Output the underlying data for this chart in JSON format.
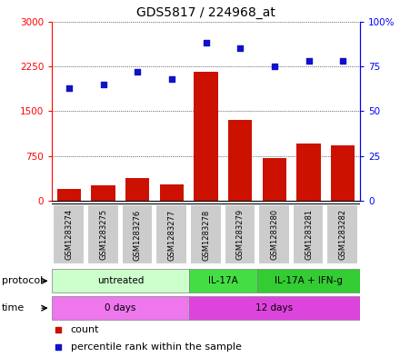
{
  "title": "GDS5817 / 224968_at",
  "samples": [
    "GSM1283274",
    "GSM1283275",
    "GSM1283276",
    "GSM1283277",
    "GSM1283278",
    "GSM1283279",
    "GSM1283280",
    "GSM1283281",
    "GSM1283282"
  ],
  "counts": [
    200,
    250,
    380,
    270,
    2150,
    1350,
    720,
    950,
    920
  ],
  "percentiles": [
    63,
    65,
    72,
    68,
    88,
    85,
    75,
    78,
    78
  ],
  "ylim_left": [
    0,
    3000
  ],
  "ylim_right": [
    0,
    100
  ],
  "yticks_left": [
    0,
    750,
    1500,
    2250,
    3000
  ],
  "ytick_labels_left": [
    "0",
    "750",
    "1500",
    "2250",
    "3000"
  ],
  "yticks_right": [
    0,
    25,
    50,
    75,
    100
  ],
  "ytick_labels_right": [
    "0",
    "25",
    "50",
    "75",
    "100%"
  ],
  "bar_color": "#cc1100",
  "dot_color": "#1111cc",
  "protocol_groups": [
    {
      "label": "untreated",
      "start": 0,
      "end": 4,
      "color": "#ccffcc"
    },
    {
      "label": "IL-17A",
      "start": 4,
      "end": 6,
      "color": "#44dd44"
    },
    {
      "label": "IL-17A + IFN-g",
      "start": 6,
      "end": 9,
      "color": "#33cc33"
    }
  ],
  "time_groups": [
    {
      "label": "0 days",
      "start": 0,
      "end": 4,
      "color": "#ee77ee"
    },
    {
      "label": "12 days",
      "start": 4,
      "end": 9,
      "color": "#dd44dd"
    }
  ],
  "sample_box_color": "#cccccc",
  "legend_count_color": "#cc1100",
  "legend_dot_color": "#1111cc",
  "grid_color": "#000000",
  "title_fontsize": 10,
  "tick_fontsize": 7.5,
  "label_fontsize": 8
}
